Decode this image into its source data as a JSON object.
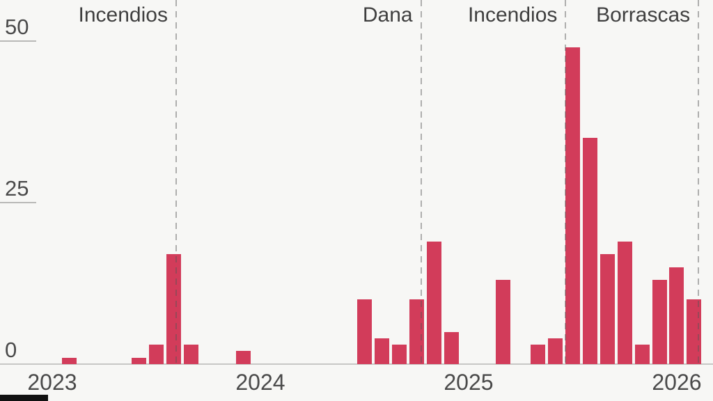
{
  "page": {
    "background": "#f7f7f5"
  },
  "chart_data": {
    "type": "bar",
    "title": "",
    "xlabel": "",
    "ylabel": "",
    "x_tick_labels": [
      "2023",
      "2024",
      "2025",
      "2026"
    ],
    "y_ticks": [
      0,
      25,
      50
    ],
    "ylim": [
      0,
      50
    ],
    "xlim_years": [
      2022.96,
      2026.22
    ],
    "legend": "none",
    "grid": "short left tick stubs at 25 and 50; full-width baseline at 0",
    "points": [
      {
        "month": "2023-02",
        "value": 1
      },
      {
        "month": "2023-06",
        "value": 1
      },
      {
        "month": "2023-07",
        "value": 3
      },
      {
        "month": "2023-08",
        "value": 17
      },
      {
        "month": "2023-09",
        "value": 3
      },
      {
        "month": "2023-12",
        "value": 2
      },
      {
        "month": "2024-07",
        "value": 10
      },
      {
        "month": "2024-08",
        "value": 4
      },
      {
        "month": "2024-09",
        "value": 3
      },
      {
        "month": "2024-10",
        "value": 10
      },
      {
        "month": "2024-11",
        "value": 19
      },
      {
        "month": "2024-12",
        "value": 5
      },
      {
        "month": "2025-03",
        "value": 13
      },
      {
        "month": "2025-05",
        "value": 3
      },
      {
        "month": "2025-06",
        "value": 4
      },
      {
        "month": "2025-07",
        "value": 49
      },
      {
        "month": "2025-08",
        "value": 35
      },
      {
        "month": "2025-09",
        "value": 17
      },
      {
        "month": "2025-10",
        "value": 19
      },
      {
        "month": "2025-11",
        "value": 3
      },
      {
        "month": "2025-12",
        "value": 13
      },
      {
        "month": "2026-01",
        "value": 15
      },
      {
        "month": "2026-02",
        "value": 10
      }
    ],
    "annotations": [
      {
        "label": "Incendios",
        "x_year": 2023.637
      },
      {
        "label": "Dana",
        "x_year": 2024.813
      },
      {
        "label": "Incendios",
        "x_year": 2025.508
      },
      {
        "label": "Borrascas",
        "x_year": 2026.146
      }
    ],
    "colors": {
      "bar": "#d23c5a",
      "annotation_line": "rgba(85,85,85,0.45)",
      "annotation_text": "#3f3f3f",
      "axis_text": "#4a4a4a",
      "baseline": "#c7c7c5",
      "tick_stub": "#b9b9b7"
    }
  }
}
